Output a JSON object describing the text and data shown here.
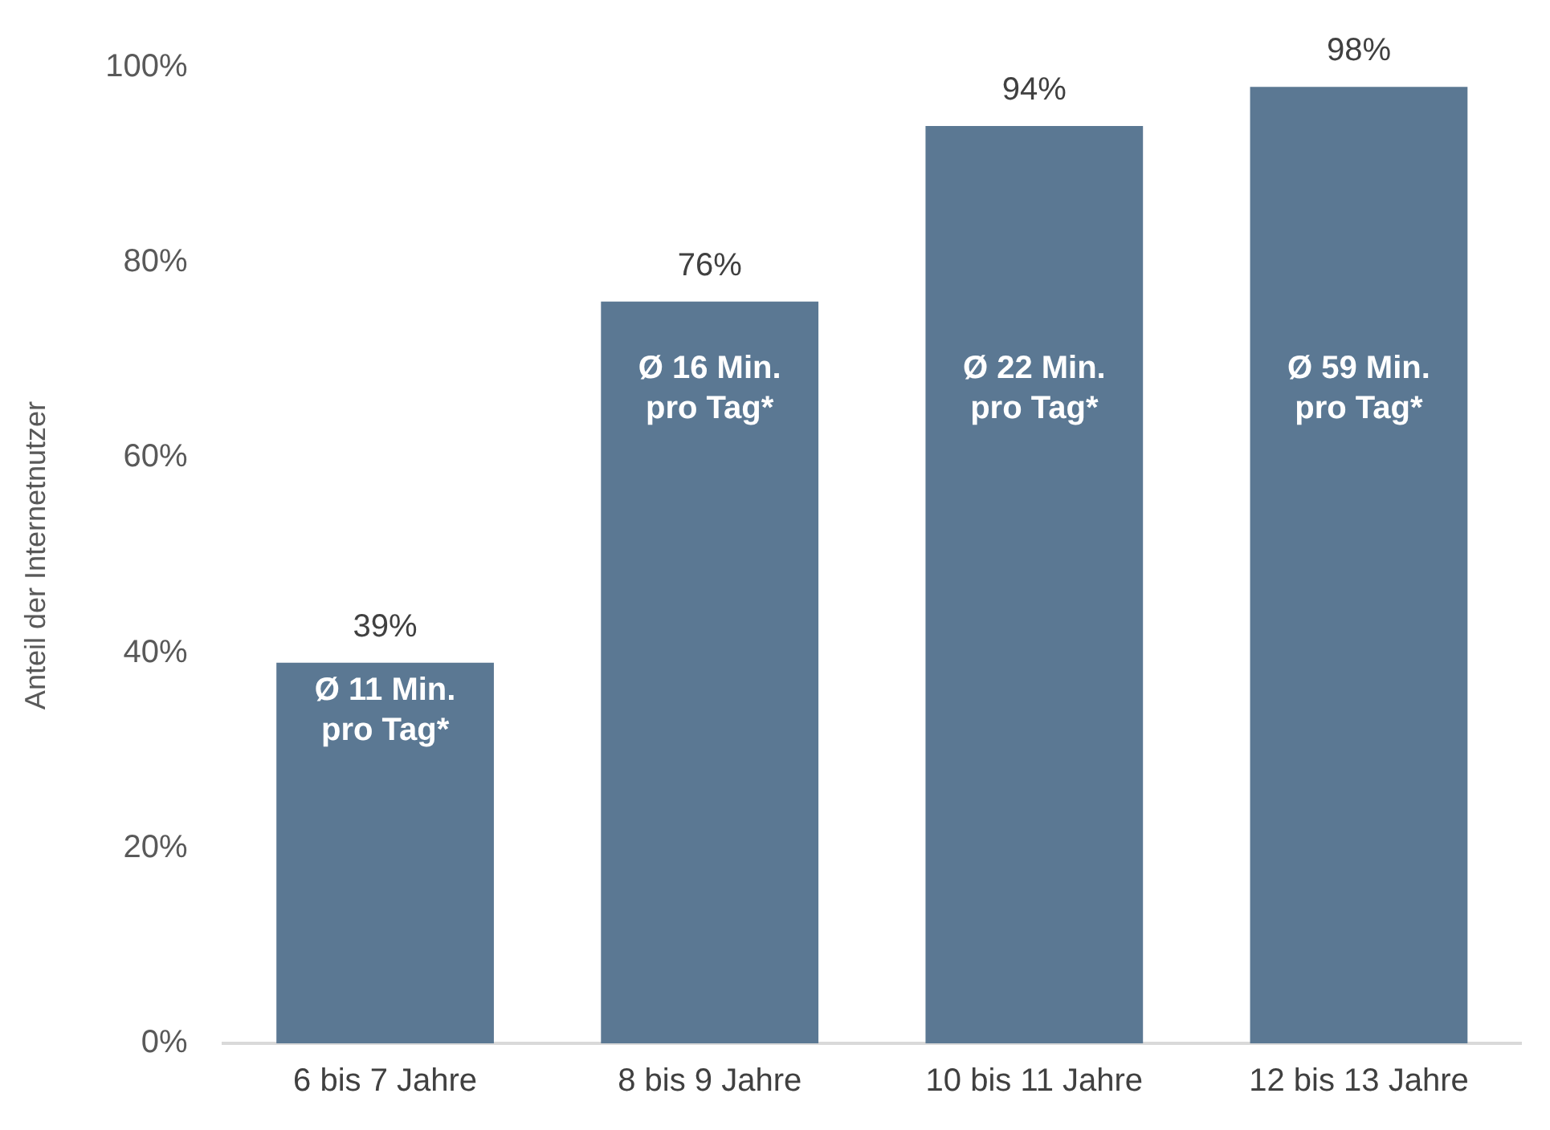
{
  "chart_data": {
    "type": "bar",
    "ylabel": "Anteil der Internetnutzer",
    "categories": [
      "6 bis 7 Jahre",
      "8 bis 9 Jahre",
      "10 bis 11 Jahre",
      "12 bis 13 Jahre"
    ],
    "values": [
      39,
      76,
      94,
      98
    ],
    "color": "#5b7893",
    "value_labels": [
      "39%",
      "76%",
      "94%",
      "98%"
    ],
    "ylim": [
      0,
      100
    ],
    "yticks": [
      {
        "value": 0,
        "label": "0%"
      },
      {
        "value": 20,
        "label": "20%"
      },
      {
        "value": 40,
        "label": "40%"
      },
      {
        "value": 60,
        "label": "60%"
      },
      {
        "value": 80,
        "label": "80%"
      },
      {
        "value": 100,
        "label": "100%"
      }
    ],
    "grid": false,
    "legend": false,
    "annotations": [
      "Ø 11 Min. pro Tag*",
      "Ø 16 Min. pro Tag*",
      "Ø 22 Min. pro Tag*",
      "Ø 59 Min. pro Tag*"
    ]
  }
}
